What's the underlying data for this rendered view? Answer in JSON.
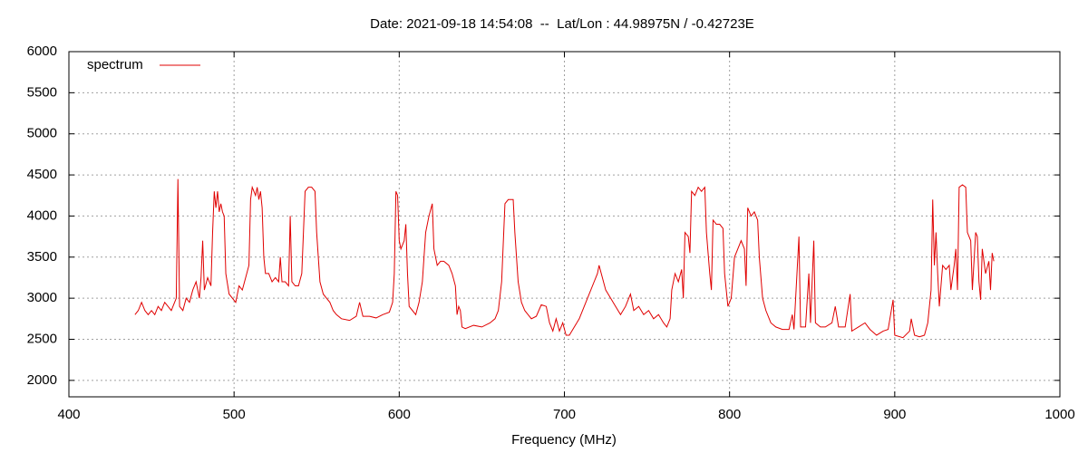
{
  "chart_data": {
    "type": "line",
    "title": "Date: 2021-09-18 14:54:08  --  Lat/Lon : 44.98975N / -0.42723E",
    "xlabel": "Frequency (MHz)",
    "xlim": [
      400,
      1000
    ],
    "xticks": [
      400,
      500,
      600,
      700,
      800,
      900,
      1000
    ],
    "ylim": [
      1800,
      6000
    ],
    "yticks": [
      2000,
      2500,
      3000,
      3500,
      4000,
      4500,
      5000,
      5500,
      6000
    ],
    "grid": true,
    "legend": "upper left",
    "x": [
      440,
      442,
      444,
      446,
      448,
      450,
      452,
      454,
      456,
      458,
      460,
      462,
      464,
      465,
      466,
      467,
      469,
      471,
      473,
      475,
      477,
      479,
      480,
      481,
      482,
      484,
      486,
      487,
      488,
      489,
      490,
      491,
      492,
      493,
      494,
      495,
      497,
      499,
      501,
      503,
      505,
      507,
      509,
      510,
      511,
      512,
      513,
      514,
      515,
      516,
      517,
      518,
      519,
      521,
      523,
      525,
      527,
      528,
      529,
      531,
      533,
      534,
      535,
      537,
      539,
      541,
      543,
      545,
      547,
      549,
      550,
      552,
      554,
      556,
      558,
      560,
      562,
      565,
      570,
      574,
      576,
      578,
      582,
      586,
      590,
      594,
      596,
      597,
      598,
      599,
      600,
      601,
      603,
      604,
      605,
      606,
      608,
      610,
      612,
      614,
      616,
      618,
      620,
      621,
      623,
      625,
      627,
      630,
      632,
      634,
      635,
      636,
      637,
      638,
      640,
      645,
      650,
      655,
      658,
      660,
      662,
      664,
      666,
      669,
      670,
      672,
      674,
      676,
      678,
      680,
      683,
      686,
      689,
      691,
      693,
      695,
      697,
      699,
      701,
      703,
      706,
      709,
      712,
      715,
      718,
      720,
      721,
      723,
      725,
      728,
      731,
      734,
      737,
      740,
      742,
      745,
      748,
      751,
      754,
      757,
      760,
      762,
      764,
      765,
      767,
      769,
      771,
      772,
      773,
      775,
      776,
      777,
      779,
      781,
      783,
      785,
      786,
      788,
      789,
      790,
      792,
      794,
      796,
      797,
      799,
      801,
      803,
      805,
      807,
      809,
      810,
      811,
      813,
      815,
      817,
      818,
      820,
      822,
      825,
      828,
      832,
      836,
      838,
      839,
      842,
      843,
      846,
      848,
      849,
      851,
      852,
      855,
      858,
      862,
      864,
      866,
      870,
      873,
      874,
      878,
      882,
      885,
      889,
      893,
      896,
      899,
      900,
      905,
      909,
      910,
      912,
      915,
      918,
      920,
      922,
      923,
      924,
      925,
      926,
      927,
      929,
      931,
      933,
      934,
      936,
      937,
      938,
      939,
      941,
      943,
      944,
      946,
      947,
      949,
      950,
      951,
      952,
      953,
      955,
      957,
      958,
      959,
      960
    ],
    "series": [
      {
        "name": "spectrum",
        "color": "#e00000",
        "values": [
          2800,
          2850,
          2950,
          2850,
          2800,
          2850,
          2800,
          2900,
          2850,
          2950,
          2900,
          2850,
          2950,
          3000,
          4450,
          2900,
          2850,
          3000,
          2950,
          3100,
          3200,
          3000,
          3250,
          3700,
          3100,
          3250,
          3150,
          3800,
          4300,
          4100,
          4300,
          4050,
          4150,
          4050,
          4000,
          3300,
          3050,
          3000,
          2950,
          3150,
          3100,
          3250,
          3400,
          4200,
          4350,
          4300,
          4250,
          4350,
          4200,
          4300,
          4100,
          3500,
          3300,
          3300,
          3200,
          3250,
          3200,
          3500,
          3200,
          3200,
          3150,
          4000,
          3200,
          3150,
          3150,
          3300,
          4300,
          4350,
          4350,
          4300,
          3800,
          3200,
          3050,
          3000,
          2950,
          2850,
          2800,
          2750,
          2730,
          2780,
          2950,
          2780,
          2780,
          2760,
          2800,
          2830,
          2950,
          3300,
          4300,
          4250,
          3700,
          3600,
          3700,
          3900,
          3300,
          2900,
          2850,
          2800,
          2950,
          3200,
          3800,
          4000,
          4150,
          3600,
          3400,
          3450,
          3450,
          3400,
          3300,
          3150,
          2800,
          2900,
          2850,
          2650,
          2630,
          2670,
          2650,
          2700,
          2750,
          2850,
          3200,
          4150,
          4200,
          4200,
          3800,
          3200,
          2950,
          2850,
          2800,
          2750,
          2780,
          2920,
          2900,
          2700,
          2600,
          2750,
          2600,
          2700,
          2550,
          2550,
          2650,
          2750,
          2900,
          3050,
          3200,
          3300,
          3400,
          3250,
          3100,
          3000,
          2900,
          2800,
          2900,
          3050,
          2850,
          2900,
          2800,
          2850,
          2750,
          2800,
          2700,
          2650,
          2750,
          3100,
          3300,
          3200,
          3350,
          3000,
          3800,
          3750,
          3550,
          4300,
          4250,
          4350,
          4300,
          4350,
          3800,
          3300,
          3100,
          3950,
          3900,
          3900,
          3850,
          3300,
          2900,
          3000,
          3500,
          3600,
          3700,
          3600,
          3150,
          4100,
          4000,
          4050,
          3950,
          3500,
          3000,
          2850,
          2700,
          2650,
          2620,
          2620,
          2800,
          2620,
          3750,
          2650,
          2650,
          3300,
          2700,
          3700,
          2700,
          2650,
          2650,
          2700,
          2900,
          2650,
          2650,
          3050,
          2600,
          2650,
          2700,
          2620,
          2550,
          2600,
          2620,
          2980,
          2550,
          2520,
          2600,
          2750,
          2550,
          2530,
          2550,
          2700,
          3100,
          4200,
          3400,
          3800,
          3300,
          2900,
          3400,
          3350,
          3400,
          3100,
          3400,
          3600,
          3100,
          4350,
          4380,
          4350,
          3800,
          3700,
          3100,
          3800,
          3750,
          3200,
          2980,
          3600,
          3300,
          3450,
          3100,
          3550,
          3450
        ]
      }
    ]
  }
}
